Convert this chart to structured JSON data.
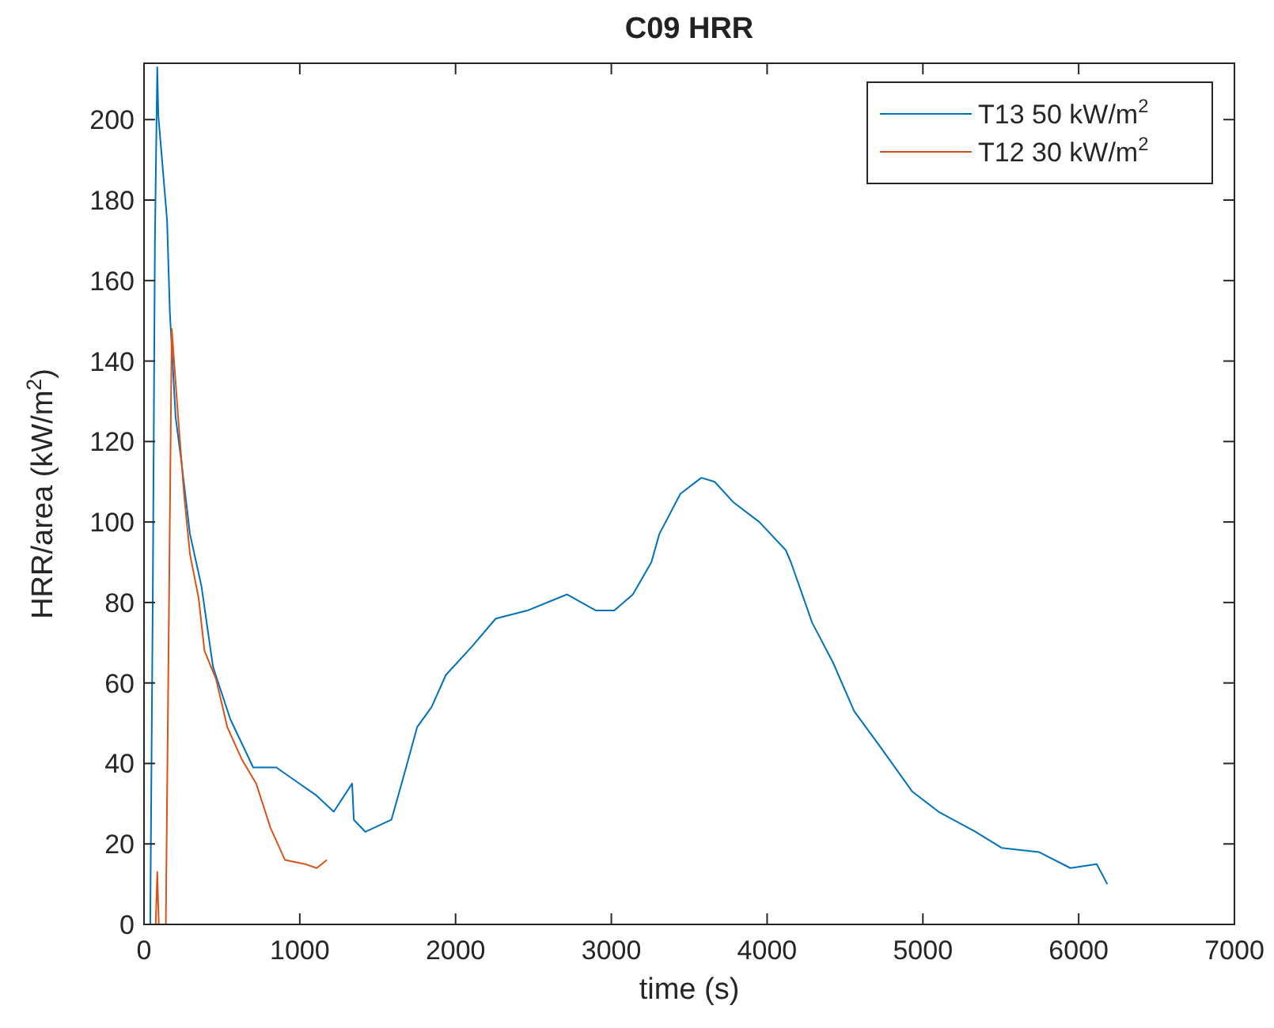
{
  "chart_data": {
    "type": "line",
    "title": "C09 HRR",
    "xlabel": "time (s)",
    "ylabel": "HRR/area (kW/m$^{2}$)",
    "xlim": [
      0,
      7000
    ],
    "xticks": [
      0,
      1000,
      2000,
      3000,
      4000,
      5000,
      6000,
      7000
    ],
    "ylim": [
      0,
      214
    ],
    "yticks": [
      0,
      20,
      40,
      60,
      80,
      100,
      120,
      140,
      160,
      180,
      200
    ],
    "grid": false,
    "legend": "top right",
    "line_style": "solid",
    "series": [
      {
        "name": "T13 50 kW/m$^{2}$",
        "color": "#0072bd",
        "x": [
          0,
          40,
          56,
          70,
          85,
          92,
          148,
          166,
          203,
          240,
          295,
          369,
          443,
          554,
          701,
          849,
          960,
          1108,
          1218,
          1336,
          1347,
          1421,
          1588,
          1661,
          1753,
          1846,
          1938,
          2104,
          2258,
          2461,
          2715,
          2901,
          3019,
          3138,
          3257,
          3308,
          3443,
          3578,
          3663,
          3781,
          3950,
          4120,
          4153,
          4289,
          4424,
          4559,
          4729,
          4932,
          5101,
          5338,
          5507,
          5744,
          5947,
          6116,
          6184
        ],
        "values": [
          0,
          0,
          80,
          170,
          213,
          201,
          175,
          152,
          126,
          115,
          97,
          84,
          64,
          51,
          39,
          39,
          36,
          32,
          28,
          35,
          26,
          23,
          26,
          36,
          49,
          54,
          62,
          69,
          76,
          78,
          82,
          78,
          78,
          82,
          90,
          97,
          107,
          111,
          110,
          105,
          100,
          93,
          90,
          75,
          65,
          53,
          44,
          33,
          28,
          23,
          19,
          18,
          14,
          15,
          10
        ]
      },
      {
        "name": "T12 30 kW/m$^{2}$",
        "color": "#d95319",
        "x": [
          60,
          75,
          85,
          95,
          140,
          178,
          221,
          259,
          295,
          351,
          388,
          462,
          535,
          628,
          720,
          812,
          905,
          1034,
          1108,
          1174
        ],
        "values": [
          0,
          0,
          13,
          0,
          0,
          148,
          125,
          106,
          92,
          81,
          68,
          61,
          49,
          41,
          35,
          24,
          16,
          15,
          14,
          16
        ]
      }
    ]
  }
}
